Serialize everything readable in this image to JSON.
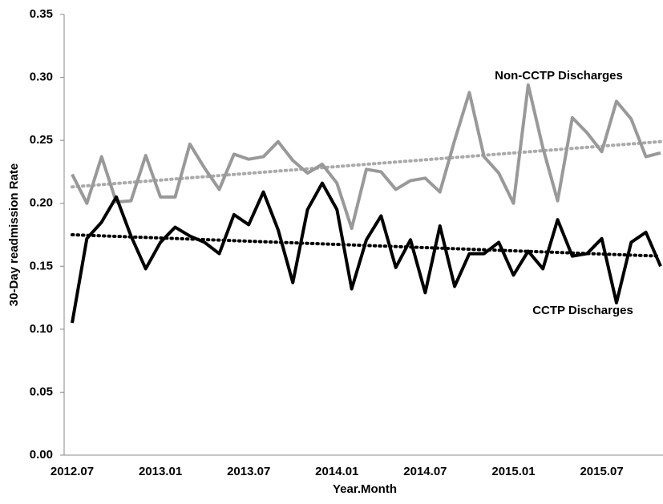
{
  "chart_data": {
    "type": "line",
    "x_label": "Year.Month",
    "y_label": "30-Day readmission Rate",
    "categories": [
      "2012.07",
      null,
      null,
      null,
      null,
      null,
      "2013.01",
      null,
      null,
      null,
      null,
      null,
      "2013.07",
      null,
      null,
      null,
      null,
      null,
      "2014.01",
      null,
      null,
      null,
      null,
      null,
      "2014.07",
      null,
      null,
      null,
      null,
      null,
      "2015.01",
      null,
      null,
      null,
      null,
      null,
      "2015.07",
      null,
      null,
      null,
      null
    ],
    "series": [
      {
        "name": "Non-CCTP Discharges",
        "color": "#999999",
        "trend_color": "#aaaaaa",
        "trend": [
          0.213,
          0.249
        ],
        "values": [
          0.223,
          0.2,
          0.237,
          0.201,
          0.202,
          0.238,
          0.205,
          0.205,
          0.247,
          0.228,
          0.211,
          0.239,
          0.235,
          0.237,
          0.249,
          0.234,
          0.224,
          0.231,
          0.216,
          0.18,
          0.227,
          0.225,
          0.211,
          0.218,
          0.22,
          0.209,
          0.25,
          0.288,
          0.237,
          0.224,
          0.2,
          0.294,
          0.244,
          0.202,
          0.268,
          0.256,
          0.241,
          0.281,
          0.267,
          0.237,
          0.24
        ]
      },
      {
        "name": "CCTP Discharges",
        "color": "#000000",
        "trend_color": "#000000",
        "trend": [
          0.175,
          0.158
        ],
        "values": [
          0.105,
          0.172,
          0.185,
          0.205,
          0.174,
          0.148,
          0.169,
          0.181,
          0.174,
          0.169,
          0.16,
          0.191,
          0.183,
          0.209,
          0.179,
          0.137,
          0.195,
          0.216,
          0.195,
          0.132,
          0.171,
          0.19,
          0.149,
          0.171,
          0.129,
          0.182,
          0.134,
          0.16,
          0.16,
          0.169,
          0.143,
          0.162,
          0.148,
          0.187,
          0.158,
          0.16,
          0.172,
          0.121,
          0.169,
          0.177,
          0.15
        ]
      }
    ],
    "ylim": [
      0,
      0.35
    ],
    "yticks": [
      {
        "value": 0,
        "label": "0.00"
      },
      {
        "value": 0.05,
        "label": "0.05"
      },
      {
        "value": 0.1,
        "label": "0.10"
      },
      {
        "value": 0.15,
        "label": "0.15"
      },
      {
        "value": 0.2,
        "label": "0.20"
      },
      {
        "value": 0.25,
        "label": "0.25"
      },
      {
        "value": 0.3,
        "label": "0.30"
      },
      {
        "value": 0.35,
        "label": "0.35"
      }
    ],
    "grid": false
  }
}
